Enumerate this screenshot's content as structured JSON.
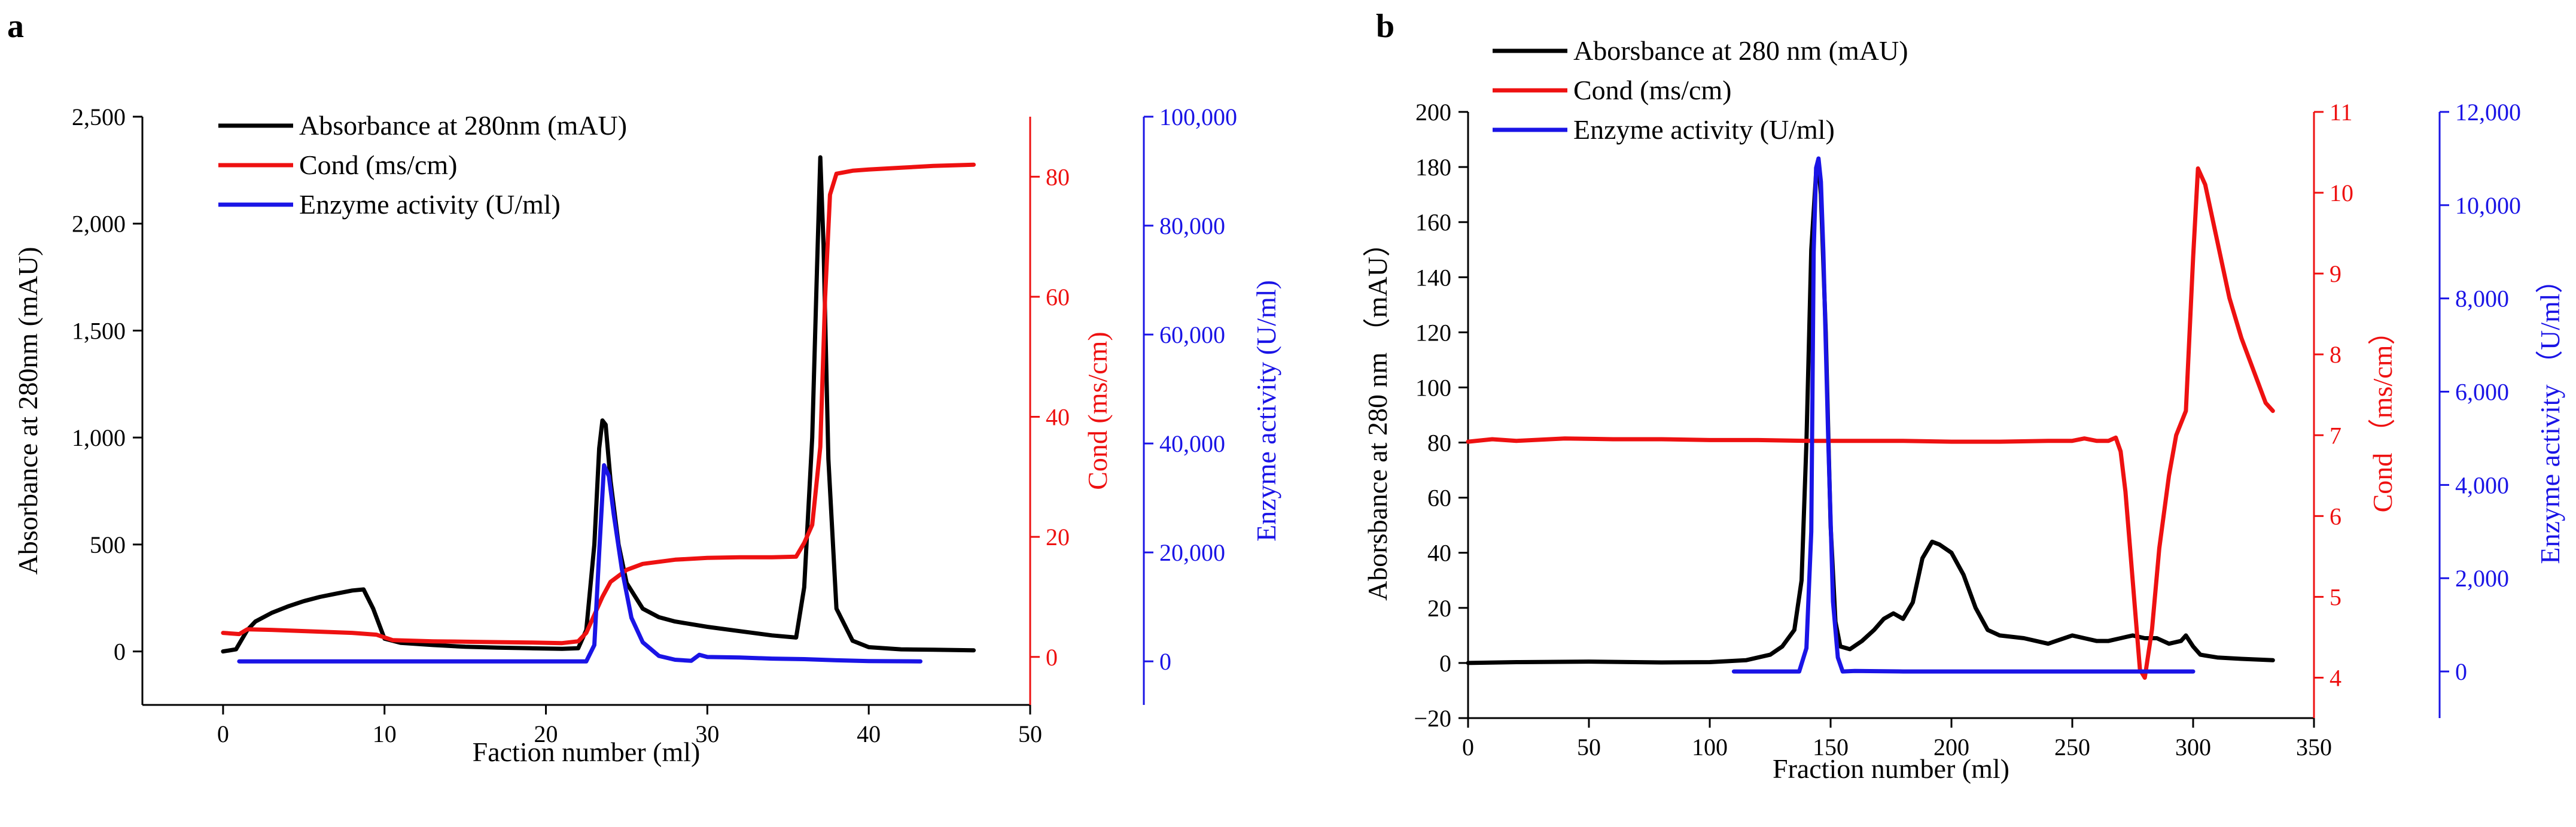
{
  "colors": {
    "black": "#000000",
    "red": "#ee1111",
    "blue": "#1a14e6"
  },
  "chart_data": [
    {
      "panel": "a",
      "type": "line",
      "xlabel": "Faction number (ml)",
      "xlim": [
        -5,
        50
      ],
      "xticks": [
        0,
        10,
        20,
        30,
        40,
        50
      ],
      "xtick_labels": [
        "0",
        "10",
        "20",
        "30",
        "40",
        "50"
      ],
      "legend_position": "top-left",
      "axes": {
        "left": {
          "label": "Absorbance at 280nm  (mAU)",
          "lim": [
            -250,
            2500
          ],
          "ticks": [
            0,
            500,
            1000,
            1500,
            2000,
            2500
          ],
          "tick_labels": [
            "0",
            "500",
            "1,000",
            "1,500",
            "2,000",
            "2,500"
          ],
          "color": "#000000"
        },
        "right1": {
          "label": "Cond  (ms/cm)",
          "lim": [
            -8,
            90
          ],
          "ticks": [
            0,
            20,
            40,
            60,
            80
          ],
          "tick_labels": [
            "0",
            "20",
            "40",
            "60",
            "80"
          ],
          "color": "#ee1111"
        },
        "right2": {
          "label": "Enzyme activity  (U/ml)",
          "lim": [
            -8000,
            100000
          ],
          "ticks": [
            0,
            20000,
            40000,
            60000,
            80000,
            100000
          ],
          "tick_labels": [
            "0",
            "20,000",
            "40,000",
            "60,000",
            "80,000",
            "100,000"
          ],
          "color": "#1a14e6"
        }
      },
      "series": [
        {
          "name": "Absorbance at 280nm (mAU)",
          "axis": "left",
          "color": "#000000",
          "x": [
            0,
            0.8,
            1.5,
            2,
            3,
            4,
            5,
            6,
            7,
            8,
            8.7,
            9.3,
            10,
            11,
            13,
            15,
            17,
            19,
            21,
            22,
            22.5,
            23,
            23.3,
            23.5,
            23.7,
            24,
            24.5,
            25,
            26,
            27,
            28,
            30,
            32,
            34,
            35.5,
            36,
            36.5,
            36.8,
            37,
            37.2,
            37.5,
            38,
            39,
            40,
            42,
            44,
            46.5
          ],
          "values": [
            0,
            10,
            100,
            140,
            180,
            210,
            235,
            255,
            270,
            285,
            290,
            200,
            60,
            40,
            30,
            22,
            18,
            15,
            12,
            15,
            100,
            500,
            950,
            1080,
            1060,
            800,
            500,
            320,
            200,
            160,
            140,
            115,
            95,
            75,
            65,
            300,
            1000,
            1800,
            2310,
            1900,
            900,
            200,
            50,
            20,
            10,
            8,
            5
          ]
        },
        {
          "name": "Cond (ms/cm)",
          "axis": "right1",
          "color": "#ee1111",
          "x": [
            0,
            1,
            1.5,
            3,
            5,
            8,
            9.5,
            10.5,
            13,
            16,
            19,
            21,
            22,
            22.5,
            23,
            23.5,
            24,
            25,
            26,
            28,
            30,
            32,
            34,
            35.5,
            36,
            36.5,
            37,
            37.3,
            37.6,
            38,
            39,
            40,
            42,
            44,
            46.5
          ],
          "values": [
            4,
            3.8,
            4.6,
            4.5,
            4.3,
            4,
            3.7,
            2.8,
            2.6,
            2.5,
            2.4,
            2.3,
            2.6,
            4,
            7,
            10,
            12.5,
            14.5,
            15.5,
            16.2,
            16.5,
            16.6,
            16.6,
            16.7,
            19,
            22,
            35,
            60,
            77,
            80.5,
            81,
            81.2,
            81.5,
            81.8,
            82
          ]
        },
        {
          "name": "Enzyme activity (U/ml)",
          "axis": "right2",
          "color": "#1a14e6",
          "x": [
            1,
            5,
            10,
            15,
            20,
            22.5,
            23,
            23.3,
            23.6,
            23.9,
            24.2,
            24.7,
            25.3,
            26,
            27,
            28,
            29,
            29.5,
            30,
            32,
            34,
            36,
            38,
            40,
            43.2
          ],
          "values": [
            0,
            0,
            0,
            0,
            0,
            0,
            3000,
            20000,
            36000,
            34000,
            27000,
            17000,
            8000,
            3500,
            1000,
            300,
            100,
            1200,
            800,
            700,
            500,
            400,
            200,
            50,
            0
          ]
        }
      ]
    },
    {
      "panel": "b",
      "type": "line",
      "xlabel": "Fraction number (ml)",
      "xlim": [
        0,
        350
      ],
      "xticks": [
        0,
        50,
        100,
        150,
        200,
        250,
        300,
        350
      ],
      "xtick_labels": [
        "0",
        "50",
        "100",
        "150",
        "200",
        "250",
        "300",
        "350"
      ],
      "legend_position": "top-left",
      "axes": {
        "left": {
          "label": "Aborsbance at 280 nm  （mAU）",
          "lim": [
            -20,
            200
          ],
          "ticks": [
            -20,
            0,
            20,
            40,
            60,
            80,
            100,
            120,
            140,
            160,
            180,
            200
          ],
          "tick_labels": [
            "−20",
            "0",
            "20",
            "40",
            "60",
            "80",
            "100",
            "120",
            "140",
            "160",
            "180",
            "200"
          ],
          "color": "#000000"
        },
        "right1": {
          "label": "Cond  （ms/cm）",
          "lim": [
            3.5,
            11
          ],
          "ticks": [
            4,
            5,
            6,
            7,
            8,
            9,
            10,
            11
          ],
          "tick_labels": [
            "4",
            "5",
            "6",
            "7",
            "8",
            "9",
            "10",
            "11"
          ],
          "color": "#ee1111"
        },
        "right2": {
          "label": "Enzyme activity  （U/ml）",
          "lim": [
            -1000,
            12000
          ],
          "ticks": [
            0,
            2000,
            4000,
            6000,
            8000,
            10000,
            12000
          ],
          "tick_labels": [
            "0",
            "2,000",
            "4,000",
            "6,000",
            "8,000",
            "10,000",
            "12,000"
          ],
          "color": "#1a14e6"
        }
      },
      "series": [
        {
          "name": "Aborsbance at 280 nm (mAU)",
          "axis": "left",
          "color": "#000000",
          "x": [
            0,
            20,
            50,
            80,
            100,
            115,
            125,
            130,
            135,
            138,
            140,
            142,
            144,
            145,
            146,
            148,
            150,
            152,
            154,
            158,
            163,
            168,
            172,
            176,
            180,
            184,
            188,
            192,
            195,
            200,
            205,
            210,
            215,
            220,
            230,
            240,
            250,
            255,
            260,
            265,
            270,
            275,
            280,
            285,
            290,
            295,
            297,
            300,
            303,
            310,
            320,
            333
          ],
          "values": [
            0,
            0.3,
            0.5,
            0.2,
            0.3,
            1,
            3,
            6,
            12,
            30,
            80,
            150,
            178,
            180,
            170,
            120,
            50,
            15,
            6,
            5,
            8,
            12,
            16,
            18,
            16,
            22,
            38,
            44,
            43,
            40,
            32,
            20,
            12,
            10,
            9,
            7,
            10,
            9,
            8,
            8,
            9,
            10,
            9,
            9,
            7,
            8,
            10,
            6,
            3,
            2,
            1.5,
            1
          ]
        },
        {
          "name": "Cond (ms/cm)",
          "axis": "right1",
          "color": "#ee1111",
          "x": [
            0,
            10,
            20,
            40,
            60,
            80,
            100,
            120,
            140,
            160,
            180,
            200,
            220,
            240,
            250,
            255,
            260,
            265,
            268,
            270,
            272,
            275,
            278,
            280,
            283,
            286,
            290,
            293,
            297,
            300,
            302,
            305,
            310,
            315,
            320,
            325,
            330,
            333
          ],
          "values": [
            6.92,
            6.95,
            6.93,
            6.96,
            6.95,
            6.95,
            6.94,
            6.94,
            6.93,
            6.93,
            6.93,
            6.92,
            6.92,
            6.93,
            6.93,
            6.96,
            6.93,
            6.93,
            6.97,
            6.8,
            6.3,
            5.2,
            4.1,
            4,
            4.6,
            5.6,
            6.5,
            7.0,
            7.3,
            9.2,
            10.3,
            10.1,
            9.4,
            8.7,
            8.2,
            7.8,
            7.4,
            7.3
          ]
        },
        {
          "name": "Enzyme activity (U/ml)",
          "axis": "right2",
          "color": "#1a14e6",
          "x": [
            110,
            120,
            130,
            137,
            140,
            142,
            143,
            144,
            145,
            146,
            147,
            149,
            151,
            153,
            155,
            160,
            180,
            200,
            220,
            240,
            260,
            280,
            300
          ],
          "values": [
            0,
            0,
            0,
            0,
            500,
            3000,
            9000,
            10800,
            11000,
            10500,
            9000,
            5000,
            1500,
            300,
            0,
            10,
            0,
            0,
            0,
            0,
            0,
            0,
            0
          ]
        }
      ]
    }
  ]
}
